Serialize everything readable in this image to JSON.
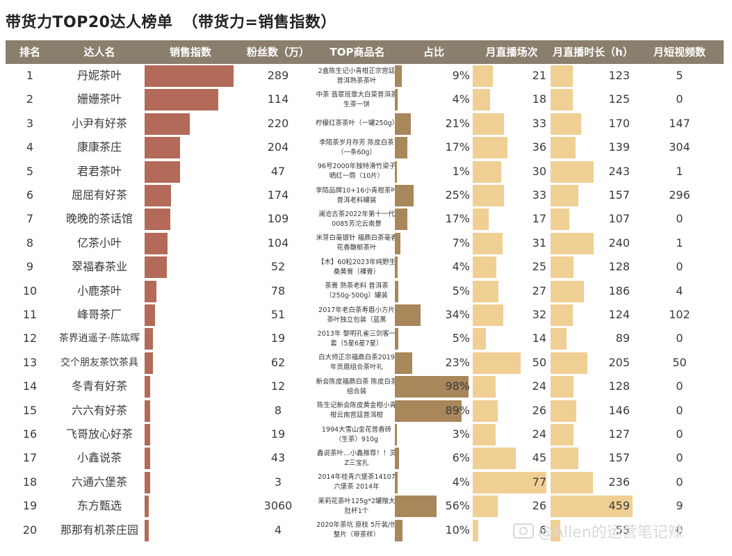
{
  "title": {
    "main": "带货力TOP20达人榜单",
    "sub": "（带货力=销售指数）"
  },
  "chart_data": {
    "type": "table",
    "columns": [
      "排名",
      "达人名",
      "销售指数",
      "粉丝数（万）",
      "TOP商品名",
      "占比",
      "月直播场次",
      "月直播时长（h）",
      "月短视频数"
    ],
    "rows": [
      {
        "rank": "1",
        "name": "丹妮茶叶",
        "sales_index": 100,
        "fans": "289",
        "product": "2盒陈生记小青柑正宗宫廷普洱熟茶茶叶",
        "pct": "9%",
        "sessions": "21",
        "hours": "123",
        "videos": "5"
      },
      {
        "rank": "2",
        "name": "姗姗茶叶",
        "sales_index": 83,
        "fans": "114",
        "product": "中茶 翡翠班章大白菜普洱茶 生茶一饼",
        "pct": "4%",
        "sessions": "18",
        "hours": "125",
        "videos": "0"
      },
      {
        "rank": "3",
        "name": "小尹有好茶",
        "sales_index": 51,
        "fans": "220",
        "product": "柠檬红茶茶叶（一罐250g）",
        "pct": "21%",
        "sessions": "33",
        "hours": "170",
        "videos": "147"
      },
      {
        "rank": "4",
        "name": "康康茶庄",
        "sales_index": 40,
        "fans": "204",
        "product": "李陌茶岁月存芳 陈皮白茶（一条60g）",
        "pct": "17%",
        "sessions": "36",
        "hours": "139",
        "videos": "304"
      },
      {
        "rank": "5",
        "name": "君君茶叶",
        "sales_index": 40,
        "fans": "47",
        "product": "96号2000年独特滑竹梁子晒红一筒（10片）",
        "pct": "1%",
        "sessions": "30",
        "hours": "243",
        "videos": "1"
      },
      {
        "rank": "6",
        "name": "屈屈有好茶",
        "sales_index": 30,
        "fans": "174",
        "product": "李陌品牌10+16小青柑茶叶普洱老料罐装",
        "pct": "25%",
        "sessions": "33",
        "hours": "157",
        "videos": "296"
      },
      {
        "rank": "7",
        "name": "晚晚的茶话馆",
        "sales_index": 29,
        "fans": "109",
        "product": "澜沧古茶2022年第十一代0085芳沱云南景",
        "pct": "17%",
        "sessions": "17",
        "hours": "107",
        "videos": "0"
      },
      {
        "rank": "8",
        "name": "亿茶小叶",
        "sales_index": 26,
        "fans": "104",
        "product": "米芽白毫银针 福鼎白茶毫香花香馥郁茶叶",
        "pct": "7%",
        "sessions": "31",
        "hours": "240",
        "videos": "1"
      },
      {
        "rank": "9",
        "name": "翠福春茶业",
        "sales_index": 25,
        "fans": "52",
        "product": "【木】60粒2023年纯野生桑黄膏（裸膏）",
        "pct": "4%",
        "sessions": "25",
        "hours": "128",
        "videos": "0"
      },
      {
        "rank": "10",
        "name": "小鹿茶叶",
        "sales_index": 13,
        "fans": "78",
        "product": "茶膏 熟茶老料 普洱茶（250g-500g）罐装",
        "pct": "5%",
        "sessions": "27",
        "hours": "186",
        "videos": "4"
      },
      {
        "rank": "11",
        "name": "峰哥茶厂",
        "sales_index": 12,
        "fans": "51",
        "product": "2017年老白茶寿眉小方片茶叶独立包装（蓝黑",
        "pct": "34%",
        "sessions": "32",
        "hours": "124",
        "videos": "102"
      },
      {
        "rank": "12",
        "name": "茶界逍遥子·陈竑晖",
        "sales_index": 9,
        "fans": "19",
        "product": "2013年 黎明孔雀三剑客一套（5星6星7星）",
        "pct": "5%",
        "sessions": "14",
        "hours": "89",
        "videos": "0"
      },
      {
        "rank": "13",
        "name": "交个朋友茶饮茶具",
        "sales_index": 9,
        "fans": "62",
        "product": "白大师正宗福鼎白茶2019年贡眉组合茶叶礼",
        "pct": "23%",
        "sessions": "50",
        "hours": "205",
        "videos": "50"
      },
      {
        "rank": "14",
        "name": "冬青有好茶",
        "sales_index": 6,
        "fans": "12",
        "product": "新会陈皮福鼎白茶 陈皮白茶组合装",
        "pct": "98%",
        "sessions": "24",
        "hours": "128",
        "videos": "0"
      },
      {
        "rank": "15",
        "name": "六六有好茶",
        "sales_index": 6,
        "fans": "8",
        "product": "陈生记新会陈皮黄金柑小青柑云南宫廷普洱柑",
        "pct": "89%",
        "sessions": "26",
        "hours": "146",
        "videos": "0"
      },
      {
        "rank": "16",
        "name": "飞哥放心好茶",
        "sales_index": 6,
        "fans": "19",
        "product": "1994大雪山金花普香砖（生茶）910g",
        "pct": "3%",
        "sessions": "24",
        "hours": "127",
        "videos": "0"
      },
      {
        "rank": "17",
        "name": "小鑫说茶",
        "sales_index": 6,
        "fans": "43",
        "product": "鑫说茶叶…小鑫推荐！！灵Z三宝扎",
        "pct": "6%",
        "sessions": "45",
        "hours": "157",
        "videos": "0"
      },
      {
        "rank": "18",
        "name": "六通六堡茶",
        "sales_index": 6,
        "fans": "3",
        "product": "2014年桂青六堡茶14107六堡茶 2014年",
        "pct": "4%",
        "sessions": "77",
        "hours": "236",
        "videos": "0"
      },
      {
        "rank": "19",
        "name": "东方甄选",
        "sales_index": 5,
        "fans": "3060",
        "product": "茉莉花茶叶125g*2罐赠大肚杯1个",
        "pct": "56%",
        "sessions": "26",
        "hours": "459",
        "videos": "9"
      },
      {
        "rank": "20",
        "name": "那那有机茶庄园",
        "sales_index": 5,
        "fans": "4",
        "product": "2020年茶坑 原枝 5斤装/份 整片（带茶样）",
        "pct": "10%",
        "sessions": "6",
        "hours": "55",
        "videos": "0"
      }
    ]
  },
  "watermark": "@Allen的运营笔记辣",
  "colors": {
    "header": "#8a7e6c",
    "sales_bar": "#b36a58",
    "pct_bar": "#a8875a",
    "live_bar": "#f0cf94"
  }
}
